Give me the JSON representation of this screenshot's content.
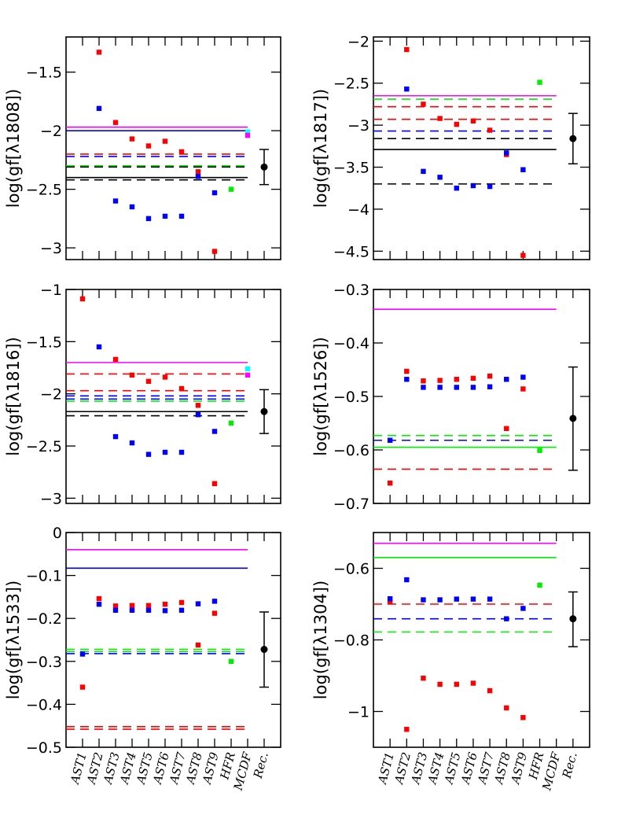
{
  "categories": [
    "AST1",
    "AST2",
    "AST3",
    "AST4",
    "AST5",
    "AST6",
    "AST7",
    "AST8",
    "AST9",
    "HFR",
    "MCDF",
    "Rec."
  ],
  "colors": {
    "red": "#ff0000",
    "blue": "#0000ff",
    "green": "#00ee00",
    "black": "#000000",
    "magenta": "#ff00ff",
    "cyan": "#00ffff"
  },
  "chart_data": [
    {
      "type": "scatter",
      "ylabel": "log(gf[λ1808])",
      "ylim": [
        -1.2,
        -3.1
      ],
      "yticks": [
        -1.5,
        -2,
        -2.5,
        -3
      ],
      "ytick_labels": [
        "−1.5",
        "−2",
        "−2.5",
        "−3"
      ],
      "series": [
        {
          "color": "red",
          "points": [
            [
              2,
              -1.33
            ],
            [
              3,
              -1.93
            ],
            [
              4,
              -2.07
            ],
            [
              5,
              -2.13
            ],
            [
              6,
              -2.09
            ],
            [
              7,
              -2.18
            ],
            [
              8,
              -2.35
            ],
            [
              9,
              -3.03
            ]
          ]
        },
        {
          "color": "blue",
          "points": [
            [
              2,
              -1.81
            ],
            [
              3,
              -2.6
            ],
            [
              4,
              -2.65
            ],
            [
              5,
              -2.75
            ],
            [
              6,
              -2.73
            ],
            [
              7,
              -2.73
            ],
            [
              8,
              -2.39
            ],
            [
              9,
              -2.53
            ]
          ]
        },
        {
          "color": "green",
          "points": [
            [
              10,
              -2.5
            ]
          ]
        },
        {
          "color": "cyan",
          "points": [
            [
              11,
              -2.01
            ]
          ]
        },
        {
          "color": "magenta",
          "points": [
            [
              11,
              -2.04
            ]
          ]
        }
      ],
      "hlines": [
        {
          "color": "magenta",
          "y": -1.97,
          "style": "solid"
        },
        {
          "color": "blue",
          "y": -2.0,
          "style": "solid"
        },
        {
          "color": "red",
          "y": -2.2,
          "style": "dashed"
        },
        {
          "color": "blue",
          "y": -2.22,
          "style": "dashed"
        },
        {
          "color": "green",
          "y": -2.3,
          "style": "dashed"
        },
        {
          "color": "black",
          "y": -2.31,
          "style": "dashed"
        },
        {
          "color": "black",
          "y": -2.4,
          "style": "solid"
        },
        {
          "color": "black",
          "y": -2.42,
          "style": "dashed"
        }
      ],
      "recommended": {
        "y": -2.31,
        "err_low": -2.16,
        "err_high": -2.46
      }
    },
    {
      "type": "scatter",
      "ylabel": "log(gf[λ1817])",
      "ylim": [
        -1.95,
        -4.6
      ],
      "yticks": [
        -2,
        -2.5,
        -3,
        -3.5,
        -4,
        -4.5
      ],
      "ytick_labels": [
        "−2",
        "−2.5",
        "−3",
        "−3.5",
        "−4",
        "−4.5"
      ],
      "series": [
        {
          "color": "red",
          "points": [
            [
              2,
              -2.1
            ],
            [
              3,
              -2.75
            ],
            [
              4,
              -2.92
            ],
            [
              5,
              -2.99
            ],
            [
              6,
              -2.95
            ],
            [
              7,
              -3.06
            ],
            [
              8,
              -3.35
            ],
            [
              9,
              -4.55
            ]
          ]
        },
        {
          "color": "blue",
          "points": [
            [
              2,
              -2.57
            ],
            [
              3,
              -3.55
            ],
            [
              4,
              -3.62
            ],
            [
              5,
              -3.75
            ],
            [
              6,
              -3.72
            ],
            [
              7,
              -3.73
            ],
            [
              8,
              -3.33
            ],
            [
              9,
              -3.53
            ]
          ]
        },
        {
          "color": "green",
          "points": [
            [
              10,
              -2.49
            ]
          ]
        }
      ],
      "hlines": [
        {
          "color": "magenta",
          "y": -2.65,
          "style": "solid"
        },
        {
          "color": "green",
          "y": -2.69,
          "style": "dashed"
        },
        {
          "color": "red",
          "y": -2.78,
          "style": "dashed"
        },
        {
          "color": "red",
          "y": -2.93,
          "style": "dashed"
        },
        {
          "color": "blue",
          "y": -3.07,
          "style": "dashed"
        },
        {
          "color": "black",
          "y": -3.16,
          "style": "dashed"
        },
        {
          "color": "black",
          "y": -3.29,
          "style": "solid"
        },
        {
          "color": "black",
          "y": -3.7,
          "style": "dashed"
        }
      ],
      "recommended": {
        "y": -3.16,
        "err_low": -2.86,
        "err_high": -3.46
      }
    },
    {
      "type": "scatter",
      "ylabel": "log(gf[λ1816])",
      "ylim": [
        -1.0,
        -3.05
      ],
      "yticks": [
        -1,
        -1.5,
        -2,
        -2.5,
        -3
      ],
      "ytick_labels": [
        "−1",
        "−1.5",
        "−2",
        "−2.5",
        "−3"
      ],
      "series": [
        {
          "color": "red",
          "points": [
            [
              1,
              -1.09
            ],
            [
              3,
              -1.67
            ],
            [
              4,
              -1.82
            ],
            [
              5,
              -1.88
            ],
            [
              6,
              -1.84
            ],
            [
              7,
              -1.95
            ],
            [
              8,
              -2.11
            ],
            [
              9,
              -2.86
            ]
          ]
        },
        {
          "color": "blue",
          "points": [
            [
              2,
              -1.55
            ],
            [
              3,
              -2.41
            ],
            [
              4,
              -2.47
            ],
            [
              5,
              -2.58
            ],
            [
              6,
              -2.56
            ],
            [
              7,
              -2.56
            ],
            [
              8,
              -2.2
            ],
            [
              9,
              -2.36
            ]
          ]
        },
        {
          "color": "green",
          "points": [
            [
              10,
              -2.28
            ]
          ]
        },
        {
          "color": "cyan",
          "points": [
            [
              11,
              -1.76
            ]
          ]
        },
        {
          "color": "magenta",
          "points": [
            [
              11,
              -1.82
            ]
          ]
        }
      ],
      "hlines": [
        {
          "color": "magenta",
          "y": -1.7,
          "style": "solid"
        },
        {
          "color": "red",
          "y": -1.81,
          "style": "dashed"
        },
        {
          "color": "red",
          "y": -1.97,
          "style": "dashed"
        },
        {
          "color": "blue",
          "y": -2.02,
          "style": "dashed"
        },
        {
          "color": "blue",
          "y": -2.05,
          "style": "dashed"
        },
        {
          "color": "green",
          "y": -2.07,
          "style": "dashed"
        },
        {
          "color": "black",
          "y": -2.17,
          "style": "solid"
        },
        {
          "color": "black",
          "y": -2.21,
          "style": "dashed"
        }
      ],
      "recommended": {
        "y": -2.17,
        "err_low": -1.96,
        "err_high": -2.38
      }
    },
    {
      "type": "scatter",
      "ylabel": "log(gf[λ1526])",
      "ylim": [
        -0.3,
        -0.7
      ],
      "yticks": [
        -0.3,
        -0.4,
        -0.5,
        -0.6,
        -0.7
      ],
      "ytick_labels": [
        "−0.3",
        "−0.4",
        "−0.5",
        "−0.6",
        "−0.7"
      ],
      "series": [
        {
          "color": "red",
          "points": [
            [
              1,
              -0.662
            ],
            [
              2,
              -0.453
            ],
            [
              3,
              -0.471
            ],
            [
              4,
              -0.47
            ],
            [
              5,
              -0.468
            ],
            [
              6,
              -0.466
            ],
            [
              7,
              -0.462
            ],
            [
              8,
              -0.56
            ],
            [
              9,
              -0.486
            ]
          ]
        },
        {
          "color": "blue",
          "points": [
            [
              1,
              -0.582
            ],
            [
              2,
              -0.468
            ],
            [
              3,
              -0.483
            ],
            [
              4,
              -0.483
            ],
            [
              5,
              -0.483
            ],
            [
              6,
              -0.483
            ],
            [
              7,
              -0.482
            ],
            [
              8,
              -0.468
            ],
            [
              9,
              -0.464
            ]
          ]
        },
        {
          "color": "green",
          "points": [
            [
              10,
              -0.601
            ]
          ]
        }
      ],
      "hlines": [
        {
          "color": "magenta",
          "y": -0.337,
          "style": "solid"
        },
        {
          "color": "green",
          "y": -0.573,
          "style": "dashed"
        },
        {
          "color": "blue",
          "y": -0.582,
          "style": "dashed"
        },
        {
          "color": "green",
          "y": -0.595,
          "style": "solid"
        },
        {
          "color": "red",
          "y": -0.636,
          "style": "dashed"
        }
      ],
      "recommended": {
        "y": -0.541,
        "err_low": -0.445,
        "err_high": -0.638
      }
    },
    {
      "type": "scatter",
      "ylabel": "log(gf[λ1533])",
      "ylim": [
        0.0,
        -0.5
      ],
      "yticks": [
        0,
        -0.1,
        -0.2,
        -0.3,
        -0.4,
        -0.5
      ],
      "ytick_labels": [
        "0",
        "−0.1",
        "−0.2",
        "−0.3",
        "−0.4",
        "−0.5"
      ],
      "series": [
        {
          "color": "red",
          "points": [
            [
              1,
              -0.36
            ],
            [
              2,
              -0.154
            ],
            [
              3,
              -0.171
            ],
            [
              4,
              -0.17
            ],
            [
              5,
              -0.17
            ],
            [
              6,
              -0.167
            ],
            [
              7,
              -0.163
            ],
            [
              8,
              -0.262
            ],
            [
              9,
              -0.188
            ]
          ]
        },
        {
          "color": "blue",
          "points": [
            [
              1,
              -0.283
            ],
            [
              2,
              -0.167
            ],
            [
              3,
              -0.181
            ],
            [
              4,
              -0.181
            ],
            [
              5,
              -0.181
            ],
            [
              6,
              -0.182
            ],
            [
              7,
              -0.181
            ],
            [
              8,
              -0.166
            ],
            [
              9,
              -0.16
            ]
          ]
        },
        {
          "color": "green",
          "points": [
            [
              10,
              -0.3
            ]
          ]
        }
      ],
      "hlines": [
        {
          "color": "magenta",
          "y": -0.04,
          "style": "solid"
        },
        {
          "color": "blue",
          "y": -0.083,
          "style": "solid"
        },
        {
          "color": "green",
          "y": -0.272,
          "style": "dashed"
        },
        {
          "color": "green",
          "y": -0.277,
          "style": "dashed"
        },
        {
          "color": "blue",
          "y": -0.282,
          "style": "dashed"
        },
        {
          "color": "red",
          "y": -0.452,
          "style": "dashed"
        },
        {
          "color": "red",
          "y": -0.458,
          "style": "dashed"
        }
      ],
      "recommended": {
        "y": -0.272,
        "err_low": -0.185,
        "err_high": -0.36
      }
    },
    {
      "type": "scatter",
      "ylabel": "log(gf[λ1304])",
      "ylim": [
        -0.5,
        -1.1
      ],
      "yticks": [
        -0.6,
        -0.8,
        -1
      ],
      "ytick_labels": [
        "−0.6",
        "−0.8",
        "−1"
      ],
      "series": [
        {
          "color": "red",
          "points": [
            [
              1,
              -0.694
            ],
            [
              2,
              -1.05
            ],
            [
              3,
              -0.907
            ],
            [
              4,
              -0.924
            ],
            [
              5,
              -0.924
            ],
            [
              6,
              -0.921
            ],
            [
              7,
              -0.942
            ],
            [
              8,
              -0.99
            ],
            [
              9,
              -1.017
            ]
          ]
        },
        {
          "color": "blue",
          "points": [
            [
              1,
              -0.685
            ],
            [
              2,
              -0.632
            ],
            [
              3,
              -0.688
            ],
            [
              4,
              -0.688
            ],
            [
              5,
              -0.686
            ],
            [
              6,
              -0.686
            ],
            [
              7,
              -0.686
            ],
            [
              8,
              -0.741
            ],
            [
              9,
              -0.712
            ]
          ]
        },
        {
          "color": "green",
          "points": [
            [
              10,
              -0.647
            ]
          ]
        }
      ],
      "hlines": [
        {
          "color": "magenta",
          "y": -0.53,
          "style": "solid"
        },
        {
          "color": "green",
          "y": -0.57,
          "style": "solid"
        },
        {
          "color": "red",
          "y": -0.7,
          "style": "dashed"
        },
        {
          "color": "blue",
          "y": -0.741,
          "style": "dashed"
        },
        {
          "color": "green",
          "y": -0.778,
          "style": "dashed"
        }
      ],
      "recommended": {
        "y": -0.741,
        "err_low": -0.666,
        "err_high": -0.819
      }
    }
  ]
}
